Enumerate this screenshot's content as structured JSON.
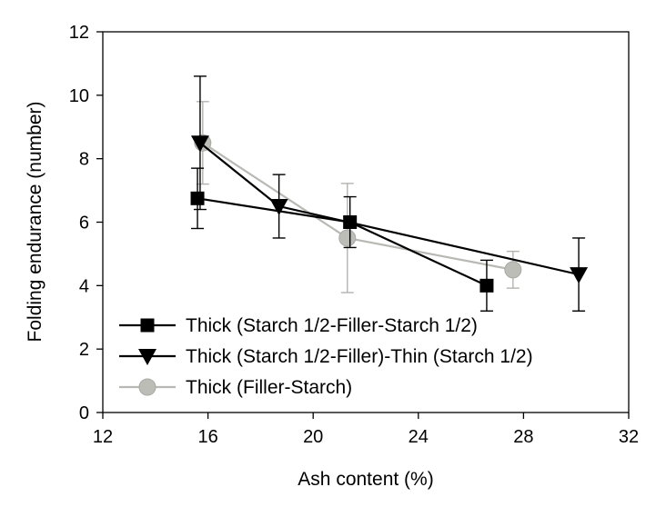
{
  "chart_data": {
    "type": "line",
    "title": "",
    "xlabel": "Ash content (%)",
    "ylabel": "Folding endurance (number)",
    "xlim": [
      12,
      32
    ],
    "ylim": [
      0,
      12
    ],
    "xticks": [
      12,
      16,
      20,
      24,
      28,
      32
    ],
    "yticks": [
      0,
      2,
      4,
      6,
      8,
      10,
      12
    ],
    "grid": false,
    "legend_position": "bottom-left",
    "series": [
      {
        "name": "Thick (Starch 1/2-Filler-Starch 1/2)",
        "marker": "square",
        "color": "#000000",
        "points": [
          {
            "x": 15.6,
            "y": 6.75,
            "err": 0.95
          },
          {
            "x": 21.4,
            "y": 6.0,
            "err": 0.8
          },
          {
            "x": 26.6,
            "y": 4.0,
            "err": 0.8
          }
        ]
      },
      {
        "name": "Thick (Starch 1/2-Filler)-Thin (Starch 1/2)",
        "marker": "triangle-down",
        "color": "#000000",
        "points": [
          {
            "x": 15.7,
            "y": 8.5,
            "err": 2.1
          },
          {
            "x": 18.7,
            "y": 6.5,
            "err": 1.0
          },
          {
            "x": 30.1,
            "y": 4.35,
            "err": 1.15
          }
        ]
      },
      {
        "name": "Thick (Filler-Starch)",
        "marker": "circle",
        "color": "#bdbdb8",
        "points": [
          {
            "x": 15.8,
            "y": 8.5,
            "err": 1.3
          },
          {
            "x": 21.3,
            "y": 5.5,
            "err": 1.72
          },
          {
            "x": 27.6,
            "y": 4.5,
            "err": 0.58
          }
        ]
      }
    ]
  }
}
